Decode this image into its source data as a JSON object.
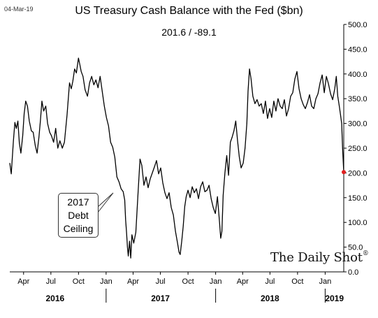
{
  "header": {
    "date_stamp": "04-Mar-19",
    "title": "US Treasury Cash Balance with the Fed ($bn)",
    "readout": "201.6  /  -89.1"
  },
  "annotation": {
    "lines": [
      "2017",
      "Debt",
      "Ceiling"
    ]
  },
  "watermark": "The Daily Shot",
  "chart_data": {
    "type": "line",
    "title": "US Treasury Cash Balance with the Fed ($bn)",
    "xlabel": "",
    "ylabel": "",
    "ylim": [
      0,
      500
    ],
    "yticks": [
      0,
      50,
      100,
      150,
      200,
      250,
      300,
      350,
      400,
      450,
      500
    ],
    "ytick_labels": [
      "0.0",
      "50.0",
      "100.0",
      "150.0",
      "200.0",
      "250.0",
      "300.0",
      "350.0",
      "400.0",
      "450.0",
      "500.0"
    ],
    "xlim": [
      "2016-02-15",
      "2019-03-04"
    ],
    "month_ticks": [
      {
        "date": "2016-04-01",
        "label": "Apr"
      },
      {
        "date": "2016-07-01",
        "label": "Jul"
      },
      {
        "date": "2016-10-01",
        "label": "Oct"
      },
      {
        "date": "2017-01-01",
        "label": "Jan"
      },
      {
        "date": "2017-04-01",
        "label": "Apr"
      },
      {
        "date": "2017-07-01",
        "label": "Jul"
      },
      {
        "date": "2017-10-01",
        "label": "Oct"
      },
      {
        "date": "2018-01-01",
        "label": "Jan"
      },
      {
        "date": "2018-04-01",
        "label": "Apr"
      },
      {
        "date": "2018-07-01",
        "label": "Jul"
      },
      {
        "date": "2018-10-01",
        "label": "Oct"
      },
      {
        "date": "2019-01-01",
        "label": "Jan"
      }
    ],
    "year_labels": [
      {
        "date": "2016-07-15",
        "label": "2016"
      },
      {
        "date": "2017-07-01",
        "label": "2017"
      },
      {
        "date": "2018-07-01",
        "label": "2018"
      },
      {
        "date": "2019-02-01",
        "label": "2019"
      }
    ],
    "year_separators": [
      "2017-01-01",
      "2018-01-01",
      "2019-01-01"
    ],
    "grid": false,
    "series": [
      {
        "color": "#000000",
        "points": [
          [
            "2016-02-15",
            220
          ],
          [
            "2016-02-20",
            198
          ],
          [
            "2016-02-27",
            265
          ],
          [
            "2016-03-03",
            302
          ],
          [
            "2016-03-08",
            290
          ],
          [
            "2016-03-13",
            305
          ],
          [
            "2016-03-18",
            260
          ],
          [
            "2016-03-23",
            240
          ],
          [
            "2016-03-29",
            275
          ],
          [
            "2016-04-03",
            320
          ],
          [
            "2016-04-08",
            345
          ],
          [
            "2016-04-14",
            335
          ],
          [
            "2016-04-20",
            305
          ],
          [
            "2016-04-27",
            285
          ],
          [
            "2016-05-03",
            282
          ],
          [
            "2016-05-10",
            255
          ],
          [
            "2016-05-16",
            240
          ],
          [
            "2016-05-22",
            272
          ],
          [
            "2016-05-27",
            305
          ],
          [
            "2016-06-01",
            345
          ],
          [
            "2016-06-07",
            325
          ],
          [
            "2016-06-14",
            335
          ],
          [
            "2016-06-20",
            300
          ],
          [
            "2016-06-27",
            282
          ],
          [
            "2016-07-03",
            275
          ],
          [
            "2016-07-10",
            262
          ],
          [
            "2016-07-17",
            290
          ],
          [
            "2016-07-24",
            250
          ],
          [
            "2016-07-31",
            265
          ],
          [
            "2016-08-08",
            250
          ],
          [
            "2016-08-15",
            262
          ],
          [
            "2016-08-24",
            318
          ],
          [
            "2016-09-01",
            382
          ],
          [
            "2016-09-07",
            370
          ],
          [
            "2016-09-12",
            385
          ],
          [
            "2016-09-18",
            410
          ],
          [
            "2016-09-24",
            402
          ],
          [
            "2016-10-01",
            432
          ],
          [
            "2016-10-05",
            420
          ],
          [
            "2016-10-10",
            405
          ],
          [
            "2016-10-16",
            395
          ],
          [
            "2016-10-23",
            368
          ],
          [
            "2016-10-31",
            355
          ],
          [
            "2016-11-07",
            382
          ],
          [
            "2016-11-14",
            395
          ],
          [
            "2016-11-21",
            378
          ],
          [
            "2016-11-28",
            388
          ],
          [
            "2016-12-05",
            372
          ],
          [
            "2016-12-12",
            395
          ],
          [
            "2016-12-19",
            365
          ],
          [
            "2016-12-26",
            335
          ],
          [
            "2017-01-02",
            312
          ],
          [
            "2017-01-09",
            295
          ],
          [
            "2017-01-16",
            262
          ],
          [
            "2017-01-23",
            252
          ],
          [
            "2017-01-30",
            232
          ],
          [
            "2017-02-06",
            192
          ],
          [
            "2017-02-13",
            182
          ],
          [
            "2017-02-20",
            168
          ],
          [
            "2017-02-27",
            162
          ],
          [
            "2017-03-04",
            145
          ],
          [
            "2017-03-07",
            105
          ],
          [
            "2017-03-10",
            80
          ],
          [
            "2017-03-13",
            50
          ],
          [
            "2017-03-16",
            32
          ],
          [
            "2017-03-20",
            62
          ],
          [
            "2017-03-24",
            28
          ],
          [
            "2017-03-28",
            75
          ],
          [
            "2017-04-03",
            58
          ],
          [
            "2017-04-10",
            80
          ],
          [
            "2017-04-18",
            165
          ],
          [
            "2017-04-24",
            228
          ],
          [
            "2017-04-30",
            215
          ],
          [
            "2017-05-07",
            175
          ],
          [
            "2017-05-14",
            192
          ],
          [
            "2017-05-21",
            170
          ],
          [
            "2017-05-28",
            188
          ],
          [
            "2017-06-04",
            200
          ],
          [
            "2017-06-11",
            212
          ],
          [
            "2017-06-18",
            225
          ],
          [
            "2017-06-25",
            198
          ],
          [
            "2017-07-02",
            210
          ],
          [
            "2017-07-09",
            180
          ],
          [
            "2017-07-16",
            160
          ],
          [
            "2017-07-23",
            148
          ],
          [
            "2017-07-30",
            160
          ],
          [
            "2017-08-06",
            130
          ],
          [
            "2017-08-13",
            115
          ],
          [
            "2017-08-20",
            82
          ],
          [
            "2017-08-27",
            58
          ],
          [
            "2017-09-01",
            40
          ],
          [
            "2017-09-05",
            35
          ],
          [
            "2017-09-10",
            62
          ],
          [
            "2017-09-15",
            92
          ],
          [
            "2017-09-20",
            132
          ],
          [
            "2017-09-25",
            152
          ],
          [
            "2017-10-01",
            165
          ],
          [
            "2017-10-08",
            150
          ],
          [
            "2017-10-15",
            172
          ],
          [
            "2017-10-22",
            160
          ],
          [
            "2017-10-29",
            168
          ],
          [
            "2017-11-05",
            148
          ],
          [
            "2017-11-12",
            172
          ],
          [
            "2017-11-19",
            182
          ],
          [
            "2017-11-26",
            162
          ],
          [
            "2017-12-03",
            165
          ],
          [
            "2017-12-10",
            175
          ],
          [
            "2017-12-17",
            148
          ],
          [
            "2017-12-24",
            130
          ],
          [
            "2017-12-31",
            118
          ],
          [
            "2018-01-07",
            152
          ],
          [
            "2018-01-14",
            100
          ],
          [
            "2018-01-18",
            68
          ],
          [
            "2018-01-22",
            82
          ],
          [
            "2018-01-26",
            155
          ],
          [
            "2018-02-01",
            200
          ],
          [
            "2018-02-07",
            235
          ],
          [
            "2018-02-13",
            195
          ],
          [
            "2018-02-19",
            262
          ],
          [
            "2018-02-25",
            272
          ],
          [
            "2018-03-03",
            285
          ],
          [
            "2018-03-09",
            305
          ],
          [
            "2018-03-15",
            265
          ],
          [
            "2018-03-21",
            232
          ],
          [
            "2018-03-27",
            210
          ],
          [
            "2018-04-03",
            220
          ],
          [
            "2018-04-09",
            250
          ],
          [
            "2018-04-15",
            300
          ],
          [
            "2018-04-19",
            365
          ],
          [
            "2018-04-24",
            410
          ],
          [
            "2018-04-29",
            390
          ],
          [
            "2018-05-05",
            355
          ],
          [
            "2018-05-12",
            340
          ],
          [
            "2018-05-19",
            348
          ],
          [
            "2018-05-26",
            335
          ],
          [
            "2018-06-02",
            340
          ],
          [
            "2018-06-09",
            320
          ],
          [
            "2018-06-16",
            345
          ],
          [
            "2018-06-23",
            310
          ],
          [
            "2018-06-30",
            330
          ],
          [
            "2018-07-07",
            312
          ],
          [
            "2018-07-14",
            345
          ],
          [
            "2018-07-21",
            325
          ],
          [
            "2018-07-28",
            350
          ],
          [
            "2018-08-04",
            335
          ],
          [
            "2018-08-11",
            330
          ],
          [
            "2018-08-18",
            348
          ],
          [
            "2018-08-25",
            315
          ],
          [
            "2018-09-01",
            330
          ],
          [
            "2018-09-08",
            355
          ],
          [
            "2018-09-15",
            362
          ],
          [
            "2018-09-22",
            390
          ],
          [
            "2018-09-29",
            405
          ],
          [
            "2018-10-06",
            370
          ],
          [
            "2018-10-13",
            350
          ],
          [
            "2018-10-20",
            338
          ],
          [
            "2018-10-27",
            330
          ],
          [
            "2018-11-03",
            342
          ],
          [
            "2018-11-10",
            358
          ],
          [
            "2018-11-17",
            335
          ],
          [
            "2018-11-24",
            330
          ],
          [
            "2018-12-01",
            350
          ],
          [
            "2018-12-08",
            360
          ],
          [
            "2018-12-15",
            382
          ],
          [
            "2018-12-22",
            398
          ],
          [
            "2018-12-29",
            362
          ],
          [
            "2019-01-05",
            395
          ],
          [
            "2019-01-12",
            380
          ],
          [
            "2019-01-19",
            360
          ],
          [
            "2019-01-26",
            348
          ],
          [
            "2019-02-02",
            370
          ],
          [
            "2019-02-07",
            395
          ],
          [
            "2019-02-12",
            355
          ],
          [
            "2019-02-17",
            335
          ],
          [
            "2019-02-21",
            318
          ],
          [
            "2019-02-25",
            300
          ],
          [
            "2019-02-28",
            250
          ],
          [
            "2019-03-04",
            201.6
          ]
        ]
      }
    ],
    "last_point": {
      "date": "2019-03-04",
      "value": 201.6,
      "color": "#e02020"
    }
  }
}
